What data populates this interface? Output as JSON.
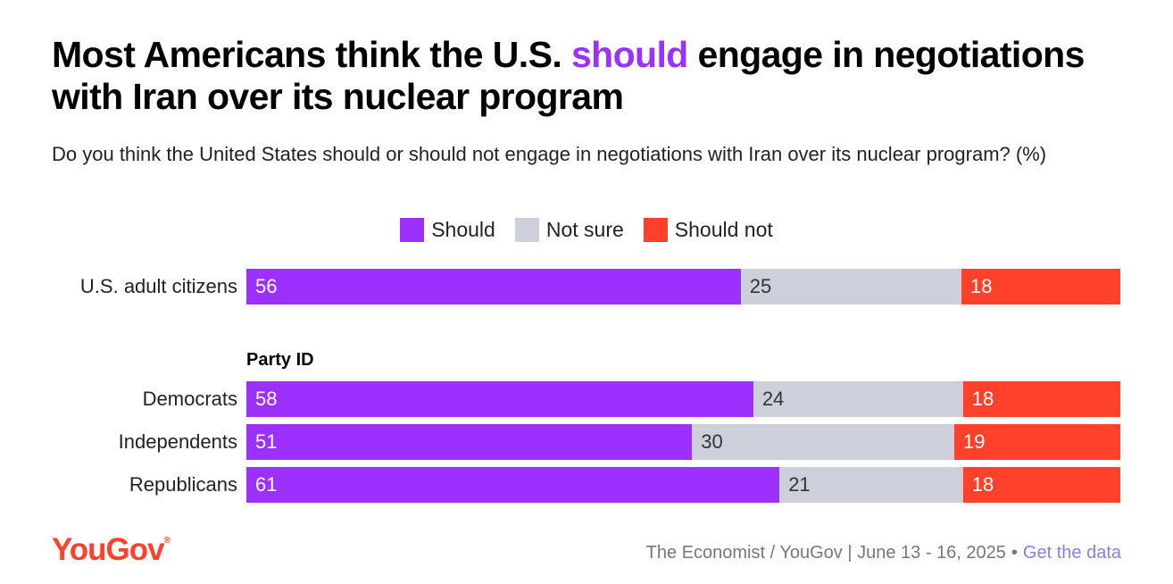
{
  "header": {
    "title_part1": "Most Americans think the U.S. ",
    "title_highlight": "should",
    "title_part2": " engage in negotiations with Iran over its nuclear program",
    "subtitle": "Do you think the United States should or should not engage in negotiations with Iran over its nuclear program? (%)"
  },
  "colors": {
    "should": "#9B30FF",
    "not_sure": "#CDD0DA",
    "should_not": "#FF412C"
  },
  "legend": [
    "Should",
    "Not sure",
    "Should not"
  ],
  "chart_data": {
    "type": "bar",
    "stacked": true,
    "orientation": "horizontal",
    "categories": [
      "U.S. adult citizens",
      "Democrats",
      "Independents",
      "Republicans"
    ],
    "group_label": "Party ID",
    "series": [
      {
        "name": "Should",
        "values": [
          56,
          58,
          51,
          61
        ]
      },
      {
        "name": "Not sure",
        "values": [
          25,
          24,
          30,
          21
        ]
      },
      {
        "name": "Should not",
        "values": [
          18,
          18,
          19,
          18
        ]
      }
    ],
    "legend_position": "top-center"
  },
  "footer": {
    "logo": "YouGov",
    "source": "The Economist / YouGov | June 13 - 16, 2025",
    "separator": "•",
    "link": "Get the data"
  }
}
